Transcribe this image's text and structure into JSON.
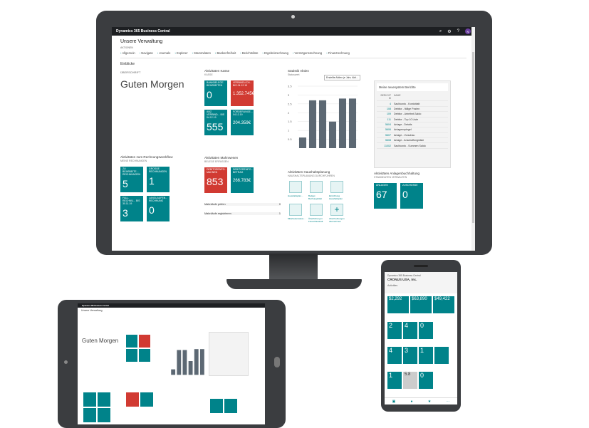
{
  "app": {
    "title": "Dynamics 365 Business Central",
    "avatar": "N"
  },
  "page": {
    "title": "Unsere Verwaltung",
    "actions_label": "AKTIONEN",
    "actions": [
      "Allgemein",
      "Navigate",
      "Journale",
      "Explorer",
      "Stammdaten",
      "Bankenfreiheit",
      "Berichtsliste",
      "Ergebnisrechnung",
      "Vermögensrechnung",
      "Finanzrechnung"
    ],
    "section": "Einblicke"
  },
  "greeting": {
    "overline": "ÜBERSCHRIFT",
    "text": "Guten Morgen"
  },
  "kasse": {
    "title": "Aktivitäten Kasse",
    "subtitle": "KASSE",
    "tiles": [
      {
        "label": "BANKBELEGE BEARBEITEN",
        "value": "0",
        "color": "teal"
      },
      {
        "label": "VERBINDLICH... BIS 04.12.19",
        "value": "1.352.745€",
        "color": "red"
      },
      {
        "label": "ANZ. VERBIND... BIS 04.12.19",
        "value": "555",
        "color": "teal"
      },
      {
        "label": "FORDERUNGE... 04.12.19",
        "value": "204.359€",
        "color": "teal"
      }
    ]
  },
  "statistik": {
    "title": "Statistik Aktien",
    "subtitle": "Statuswert",
    "dropdown": "Erstellte Aktien je Jahr, Akti..."
  },
  "chart_data": {
    "type": "bar",
    "categories": [
      "1",
      "2",
      "3",
      "4",
      "5",
      "6"
    ],
    "values": [
      0.6,
      2.7,
      2.7,
      1.5,
      2.8,
      2.8
    ],
    "ylim": [
      0,
      3.5
    ],
    "yticks": [
      "3.5",
      "3",
      "2.5",
      "2",
      "1.5",
      "1",
      "0.5"
    ]
  },
  "berichte": {
    "title": "Meine neuesystem Berichte",
    "col1": "BERICHT ID",
    "col2": "NAME",
    "rows": [
      [
        "4",
        "Sachkonto - Kontoblatt"
      ],
      [
        "108",
        "Debitor - fällige Posten"
      ],
      [
        "109",
        "Debitor - Arbeitsrt-Saldo"
      ],
      [
        "111",
        "Debitor - Top 10 Liste"
      ],
      [
        "5604",
        "Anlage - Details"
      ],
      [
        "5606",
        "Anlagenspiegel"
      ],
      [
        "5607",
        "Anlage - Vorschau"
      ],
      [
        "5608",
        "Anlage - Anschaffungsliste"
      ],
      [
        "11002",
        "Sachkonto - Summen Saldo"
      ]
    ]
  },
  "rechnung": {
    "title": "Aktivitäten zum Rechnungsworkflow",
    "subtitle": "MEINE RECHNUNGEN",
    "tiles": [
      {
        "label": "ZU BEARBEITE... RECHNUNGEN",
        "value": "5"
      },
      {
        "label": "GROSSE RECHNUNGEN",
        "value": "1"
      },
      {
        "label": "FÄLL. RECHNU... BIS 30.11.19",
        "value": "3"
      },
      {
        "label": "LANGLAUFEN... RECHNUNG",
        "value": "0"
      }
    ]
  },
  "mahnwesen": {
    "title": "Aktivitäten Mahnwesen",
    "subtitle": "BELEGE ERFASSEN",
    "tiles": [
      {
        "label": "DEBITORENPO... MAHNEN",
        "value": "853",
        "color": "red"
      },
      {
        "label": "DEBITORENPO... BETRAG",
        "value": "266.783€",
        "color": "teal"
      }
    ],
    "links": [
      {
        "label": "Mahnläufe prüfen",
        "value": "0"
      },
      {
        "label": "Mahnläufe registrieren",
        "value": "1"
      }
    ]
  },
  "haushalt": {
    "title": "Aktivitäten Haushaltsplanung",
    "subtitle": "HAUSHALTSPLANUNG DURCHFÜHREN",
    "items": [
      "Haushaltsplan...",
      "Budget Buchungsblatt",
      "Einrichtung Haushaltsplan",
      "Mitarbeiterstatus...",
      "Überführung in Finanzhaushalt",
      "Abschreibungen übernehmen"
    ]
  },
  "anlagen": {
    "title": "Aktivitäten Anlagenbuchhaltung",
    "subtitle": "STAMMDATEN VERWALTEN",
    "tiles": [
      {
        "label": "ANLAGEN",
        "value": "67"
      },
      {
        "label": "ZUSCHÜSSE",
        "value": "0"
      }
    ]
  },
  "phone": {
    "title": "Dynamics 365 Business Central",
    "company": "CRONUS USA, Inc.",
    "tab": "Activities",
    "kpis": [
      "$2,292",
      "$63,890",
      "$49,422"
    ],
    "row2": [
      "2",
      "4",
      "0"
    ],
    "row3": [
      "4",
      "3",
      "1"
    ],
    "row4": [
      "1",
      "5.8",
      "0"
    ]
  }
}
